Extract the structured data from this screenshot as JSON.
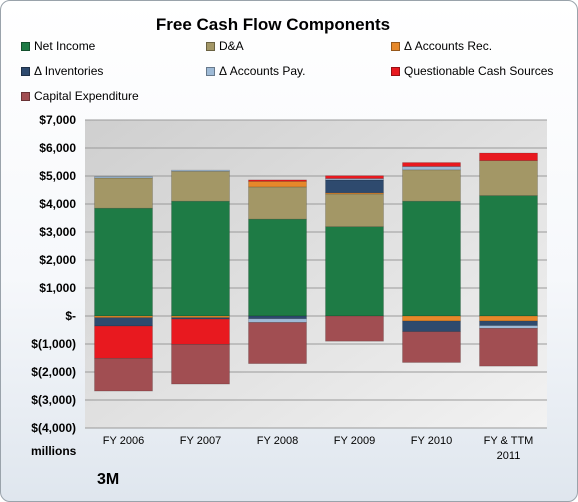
{
  "chart_data": {
    "type": "bar",
    "stacked": true,
    "title": "Free Cash Flow Components",
    "ylabel": "millions",
    "company": "3M",
    "categories": [
      "FY 2006",
      "FY 2007",
      "FY 2008",
      "FY 2009",
      "FY 2010",
      "FY & TTM 2011"
    ],
    "ylim": [
      -4000,
      7000
    ],
    "yticks": [
      {
        "value": 7000,
        "label": "$7,000"
      },
      {
        "value": 6000,
        "label": "$6,000"
      },
      {
        "value": 5000,
        "label": "$5,000"
      },
      {
        "value": 4000,
        "label": "$4,000"
      },
      {
        "value": 3000,
        "label": "$3,000"
      },
      {
        "value": 2000,
        "label": "$2,000"
      },
      {
        "value": 1000,
        "label": "$1,000"
      },
      {
        "value": 0,
        "label": "$-"
      },
      {
        "value": -1000,
        "label": "$(1,000)"
      },
      {
        "value": -2000,
        "label": "$(2,000)"
      },
      {
        "value": -3000,
        "label": "$(3,000)"
      },
      {
        "value": -4000,
        "label": "$(4,000)"
      }
    ],
    "grid": true,
    "legend_position": "top",
    "series": [
      {
        "name": "Net Income",
        "color": "#1e7b45",
        "values": [
          3850,
          4100,
          3460,
          3190,
          4100,
          4300
        ]
      },
      {
        "name": "D&A",
        "color": "#a39766",
        "values": [
          1080,
          1070,
          1150,
          1170,
          1120,
          1250
        ]
      },
      {
        "name": "Δ Accounts Rec.",
        "color": "#e6882a",
        "values": [
          -60,
          -60,
          200,
          40,
          -180,
          -180
        ]
      },
      {
        "name": "Δ Inventories",
        "color": "#2e4a6e",
        "values": [
          -300,
          -50,
          -100,
          460,
          -380,
          -160
        ]
      },
      {
        "name": "Δ Accounts Pay.",
        "color": "#9ebad6",
        "values": [
          50,
          40,
          -130,
          50,
          120,
          -100
        ]
      },
      {
        "name": "Questionable Cash Sources",
        "color": "#e8191f",
        "values": [
          -1150,
          -900,
          50,
          100,
          140,
          270
        ]
      },
      {
        "name": "Capital Expenditure",
        "color": "#a14e52",
        "values": [
          -1170,
          -1420,
          -1470,
          -900,
          -1100,
          -1350
        ]
      }
    ]
  }
}
